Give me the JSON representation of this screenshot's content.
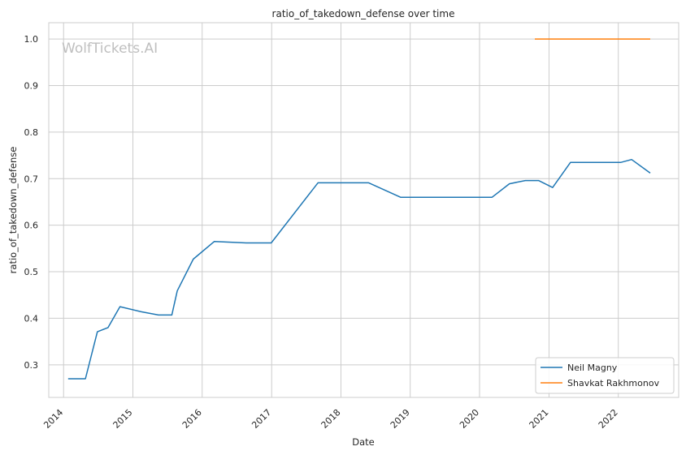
{
  "chart_data": {
    "type": "line",
    "title": "ratio_of_takedown_defense over time",
    "xlabel": "Date",
    "ylabel": "ratio_of_takedown_defense",
    "watermark": "WolfTickets.AI",
    "xlim": [
      "2013-10-15",
      "2022-11-15"
    ],
    "ylim": [
      0.23,
      1.035
    ],
    "x_ticks": [
      "2014",
      "2015",
      "2016",
      "2017",
      "2018",
      "2019",
      "2020",
      "2021",
      "2022"
    ],
    "y_ticks": [
      "0.3",
      "0.4",
      "0.5",
      "0.6",
      "0.7",
      "0.8",
      "0.9",
      "1.0"
    ],
    "grid": true,
    "legend_position": "lower-right",
    "series": [
      {
        "name": "Neil Magny",
        "color": "#1f77b4",
        "points": [
          {
            "x": "2014-01-25",
            "y": 0.27
          },
          {
            "x": "2014-04-26",
            "y": 0.27
          },
          {
            "x": "2014-06-28",
            "y": 0.371
          },
          {
            "x": "2014-08-23",
            "y": 0.38
          },
          {
            "x": "2014-10-25",
            "y": 0.425
          },
          {
            "x": "2015-02-14",
            "y": 0.414
          },
          {
            "x": "2015-05-16",
            "y": 0.407
          },
          {
            "x": "2015-07-25",
            "y": 0.407
          },
          {
            "x": "2015-08-23",
            "y": 0.459
          },
          {
            "x": "2015-11-15",
            "y": 0.527
          },
          {
            "x": "2016-03-05",
            "y": 0.565
          },
          {
            "x": "2016-08-20",
            "y": 0.562
          },
          {
            "x": "2016-12-30",
            "y": 0.562
          },
          {
            "x": "2017-09-02",
            "y": 0.691
          },
          {
            "x": "2018-05-27",
            "y": 0.691
          },
          {
            "x": "2018-11-11",
            "y": 0.66
          },
          {
            "x": "2020-03-07",
            "y": 0.66
          },
          {
            "x": "2020-06-06",
            "y": 0.689
          },
          {
            "x": "2020-08-29",
            "y": 0.696
          },
          {
            "x": "2020-11-07",
            "y": 0.696
          },
          {
            "x": "2021-01-20",
            "y": 0.681
          },
          {
            "x": "2021-04-24",
            "y": 0.735
          },
          {
            "x": "2022-01-15",
            "y": 0.735
          },
          {
            "x": "2022-03-12",
            "y": 0.741
          },
          {
            "x": "2022-06-18",
            "y": 0.712
          }
        ]
      },
      {
        "name": "Shavkat Rakhmonov",
        "color": "#ff7f0e",
        "points": [
          {
            "x": "2020-10-18",
            "y": 1.0
          },
          {
            "x": "2022-06-18",
            "y": 1.0
          }
        ]
      }
    ]
  }
}
